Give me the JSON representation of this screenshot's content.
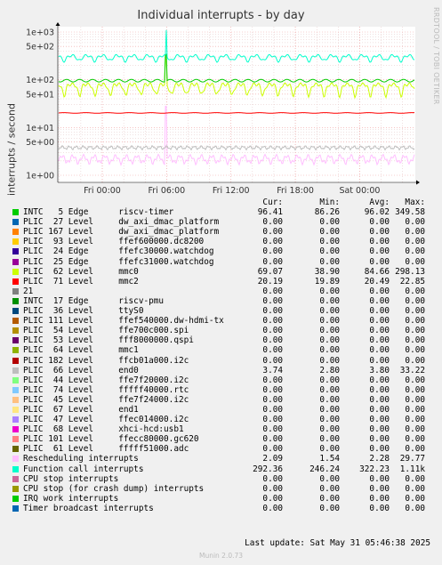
{
  "chart_data": {
    "type": "line",
    "title": "Individual interrupts - by day",
    "ylabel": "interrupts / second",
    "yscale": "log",
    "ylim": [
      0.7,
      2500
    ],
    "yticks": [
      "1e+00",
      "5e+00",
      "1e+01",
      "5e+01",
      "1e+02",
      "5e+02",
      "1e+03"
    ],
    "xticks": [
      "Fri 00:00",
      "Fri 06:00",
      "Fri 12:00",
      "Fri 18:00",
      "Sat 00:00"
    ],
    "grid": true,
    "series": [
      {
        "name": "riscv-timer",
        "color": "#00cc00",
        "cur": "96.41",
        "min": "86.26",
        "avg": "96.02",
        "max": "349.58"
      },
      {
        "name": "dw_axi_dmac_platform",
        "color": "#0066b3",
        "cur": "0.00",
        "min": "0.00",
        "avg": "0.00",
        "max": "0.00"
      },
      {
        "name": "dw_axi_dmac_platform",
        "color": "#ff8000",
        "cur": "0.00",
        "min": "0.00",
        "avg": "0.00",
        "max": "0.00"
      },
      {
        "name": "ffef600000.dc8200",
        "color": "#ffcc00",
        "cur": "0.00",
        "min": "0.00",
        "avg": "0.00",
        "max": "0.00"
      },
      {
        "name": "ffefc30000.watchdog",
        "color": "#330099",
        "cur": "0.00",
        "min": "0.00",
        "avg": "0.00",
        "max": "0.00"
      },
      {
        "name": "ffefc31000.watchdog",
        "color": "#990099",
        "cur": "0.00",
        "min": "0.00",
        "avg": "0.00",
        "max": "0.00"
      },
      {
        "name": "mmc0",
        "color": "#ccff00",
        "cur": "69.07",
        "min": "38.90",
        "avg": "84.66",
        "max": "298.13"
      },
      {
        "name": "mmc2",
        "color": "#ff0000",
        "cur": "20.19",
        "min": "19.89",
        "avg": "20.49",
        "max": "22.85"
      },
      {
        "name": "",
        "color": "#808080",
        "cur": "0.00",
        "min": "0.00",
        "avg": "0.00",
        "max": "0.00"
      },
      {
        "name": "riscv-pmu",
        "color": "#008f00",
        "cur": "0.00",
        "min": "0.00",
        "avg": "0.00",
        "max": "0.00"
      },
      {
        "name": "ttyS0",
        "color": "#00487d",
        "cur": "0.00",
        "min": "0.00",
        "avg": "0.00",
        "max": "0.00"
      },
      {
        "name": "ffef540000.dw-hdmi-tx",
        "color": "#b35a00",
        "cur": "0.00",
        "min": "0.00",
        "avg": "0.00",
        "max": "0.00"
      },
      {
        "name": "ffe700c000.spi",
        "color": "#b38f00",
        "cur": "0.00",
        "min": "0.00",
        "avg": "0.00",
        "max": "0.00"
      },
      {
        "name": "fff8000000.qspi",
        "color": "#6b006b",
        "cur": "0.00",
        "min": "0.00",
        "avg": "0.00",
        "max": "0.00"
      },
      {
        "name": "mmc1",
        "color": "#8fb300",
        "cur": "0.00",
        "min": "0.00",
        "avg": "0.00",
        "max": "0.00"
      },
      {
        "name": "ffcb01a000.i2c",
        "color": "#b30000",
        "cur": "0.00",
        "min": "0.00",
        "avg": "0.00",
        "max": "0.00"
      },
      {
        "name": "end0",
        "color": "#bebebe",
        "cur": "3.74",
        "min": "2.80",
        "avg": "3.80",
        "max": "33.22"
      },
      {
        "name": "ffe7f20000.i2c",
        "color": "#80ff80",
        "cur": "0.00",
        "min": "0.00",
        "avg": "0.00",
        "max": "0.00"
      },
      {
        "name": "fffff40000.rtc",
        "color": "#80c9ff",
        "cur": "0.00",
        "min": "0.00",
        "avg": "0.00",
        "max": "0.00"
      },
      {
        "name": "ffe7f24000.i2c",
        "color": "#ffc080",
        "cur": "0.00",
        "min": "0.00",
        "avg": "0.00",
        "max": "0.00"
      },
      {
        "name": "end1",
        "color": "#ffe680",
        "cur": "0.00",
        "min": "0.00",
        "avg": "0.00",
        "max": "0.00"
      },
      {
        "name": "ffec014000.i2c",
        "color": "#aa80ff",
        "cur": "0.00",
        "min": "0.00",
        "avg": "0.00",
        "max": "0.00"
      },
      {
        "name": "xhci-hcd:usb1",
        "color": "#ee00cc",
        "cur": "0.00",
        "min": "0.00",
        "avg": "0.00",
        "max": "0.00"
      },
      {
        "name": "ffecc80000.gc620",
        "color": "#ff8080",
        "cur": "0.00",
        "min": "0.00",
        "avg": "0.00",
        "max": "0.00"
      },
      {
        "name": "fffff51000.adc",
        "color": "#666600",
        "cur": "0.00",
        "min": "0.00",
        "avg": "0.00",
        "max": "0.00"
      },
      {
        "name": "Rescheduling interrupts",
        "color": "#ffbfff",
        "cur": "2.09",
        "min": "1.54",
        "avg": "2.28",
        "max": "29.77"
      },
      {
        "name": "Function call interrupts",
        "color": "#00ffcc",
        "cur": "292.36",
        "min": "246.24",
        "avg": "322.23",
        "max": "1.11k"
      },
      {
        "name": "CPU stop interrupts",
        "color": "#cc6699",
        "cur": "0.00",
        "min": "0.00",
        "avg": "0.00",
        "max": "0.00"
      },
      {
        "name": "CPU stop (for crash dump) interrupts",
        "color": "#999900",
        "cur": "0.00",
        "min": "0.00",
        "avg": "0.00",
        "max": "0.00"
      },
      {
        "name": "IRQ work interrupts",
        "color": "#00cc00",
        "cur": "0.00",
        "min": "0.00",
        "avg": "0.00",
        "max": "0.00"
      },
      {
        "name": "Timer broadcast interrupts",
        "color": "#0066b3",
        "cur": "0.00",
        "min": "0.00",
        "avg": "0.00",
        "max": "0.00"
      }
    ]
  },
  "legend": {
    "headers": {
      "cur": "Cur:",
      "min": "Min:",
      "avg": "Avg:",
      "max": "Max:"
    },
    "rows": [
      "INTC   5 Edge      riscv-timer",
      "PLIC  27 Level     dw_axi_dmac_platform",
      "PLIC 167 Level     dw_axi_dmac_platform",
      "PLIC  93 Level     ffef600000.dc8200",
      "PLIC  24 Edge      ffefc30000.watchdog",
      "PLIC  25 Edge      ffefc31000.watchdog",
      "PLIC  62 Level     mmc0",
      "PLIC  71 Level     mmc2",
      "21",
      "INTC  17 Edge      riscv-pmu",
      "PLIC  36 Level     ttyS0",
      "PLIC 111 Level     ffef540000.dw-hdmi-tx",
      "PLIC  54 Level     ffe700c000.spi",
      "PLIC  53 Level     fff8000000.qspi",
      "PLIC  64 Level     mmc1",
      "PLIC 182 Level     ffcb01a000.i2c",
      "PLIC  66 Level     end0",
      "PLIC  44 Level     ffe7f20000.i2c",
      "PLIC  74 Level     fffff40000.rtc",
      "PLIC  45 Level     ffe7f24000.i2c",
      "PLIC  67 Level     end1",
      "PLIC  47 Level     ffec014000.i2c",
      "PLIC  68 Level     xhci-hcd:usb1",
      "PLIC 101 Level     ffecc80000.gc620",
      "PLIC  61 Level     fffff51000.adc",
      "Rescheduling interrupts",
      "Function call interrupts",
      "CPU stop interrupts",
      "CPU stop (for crash dump) interrupts",
      "IRQ work interrupts",
      "Timer broadcast interrupts"
    ]
  },
  "last_update": "Last update: Sat May 31 05:46:38 2025",
  "side_text": "RRDTOOL / TOBI OETIKER",
  "footer": "Munin 2.0.73"
}
